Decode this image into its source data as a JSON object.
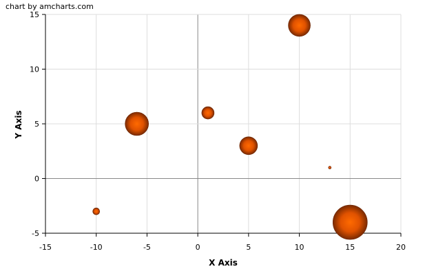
{
  "credit": "chart by amcharts.com",
  "chart_data": {
    "type": "scatter",
    "subtype": "bubble",
    "xlabel": "X Axis",
    "ylabel": "Y Axis",
    "xlim": [
      -15,
      20
    ],
    "ylim": [
      -5,
      15
    ],
    "x_ticks": [
      -15,
      -10,
      -5,
      0,
      5,
      10,
      15,
      20
    ],
    "y_ticks": [
      -5,
      0,
      5,
      10,
      15
    ],
    "grid": true,
    "bubble_color": "#FF6600",
    "points": [
      {
        "x": 10,
        "y": 14,
        "size": 16
      },
      {
        "x": 1,
        "y": 6,
        "size": 9
      },
      {
        "x": -6,
        "y": 5,
        "size": 17
      },
      {
        "x": 5,
        "y": 3,
        "size": 13
      },
      {
        "x": 13,
        "y": 1,
        "size": 2
      },
      {
        "x": -10,
        "y": -3,
        "size": 5
      },
      {
        "x": 15,
        "y": -4,
        "size": 25
      }
    ]
  }
}
